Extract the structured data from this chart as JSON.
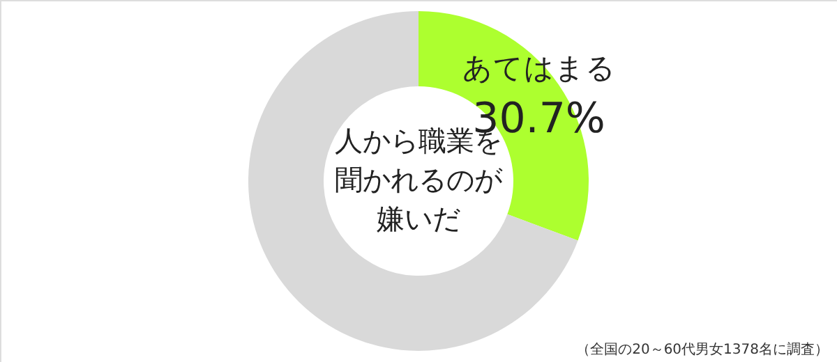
{
  "chart_data": {
    "type": "donut",
    "title": "人から職業を聞かれるのが嫌いだ",
    "categories": [
      "あてはまる",
      null
    ],
    "values": [
      30.7,
      69.3
    ],
    "colors": [
      "#adff2f",
      "#d9d9d9"
    ],
    "value_labels": [
      "30.7%",
      null
    ],
    "legend": false,
    "annotations": [
      "（全国の20～60代男女1378名に調査）"
    ]
  }
}
